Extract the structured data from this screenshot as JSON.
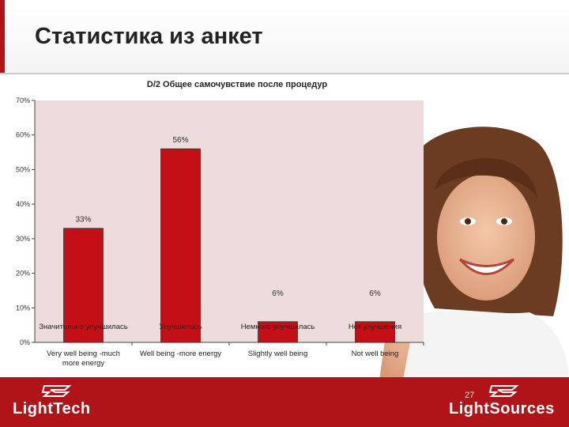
{
  "slide": {
    "title": "Статистика из анкет",
    "page_number": "27",
    "logos": {
      "left": "LightTech",
      "right": "LightSources"
    }
  },
  "colors": {
    "bar": "#c40f17",
    "plot_bg": "#eedbdb",
    "footer": "#b01419"
  },
  "chart_data": {
    "type": "bar",
    "title": "D/2 Общее самочувствие после процедур",
    "categories": [
      "Значительно улучшилась",
      "Улучшилась",
      "Немного улучшилась",
      "Нет улучшения"
    ],
    "categories_en": [
      "Very  well being -much more energy",
      "Well being -more energy",
      "Slightly well being",
      "Not well being"
    ],
    "values": [
      33,
      56,
      6,
      6
    ],
    "value_labels": [
      "33%",
      "56%",
      "6%",
      "6%"
    ],
    "y_ticks": [
      0,
      10,
      20,
      30,
      40,
      50,
      60,
      70
    ],
    "y_tick_labels": [
      "0%",
      "10%",
      "20%",
      "30%",
      "40%",
      "50%",
      "60%",
      "70%"
    ],
    "ylim": [
      0,
      70
    ],
    "grid": false,
    "legend": "none"
  }
}
